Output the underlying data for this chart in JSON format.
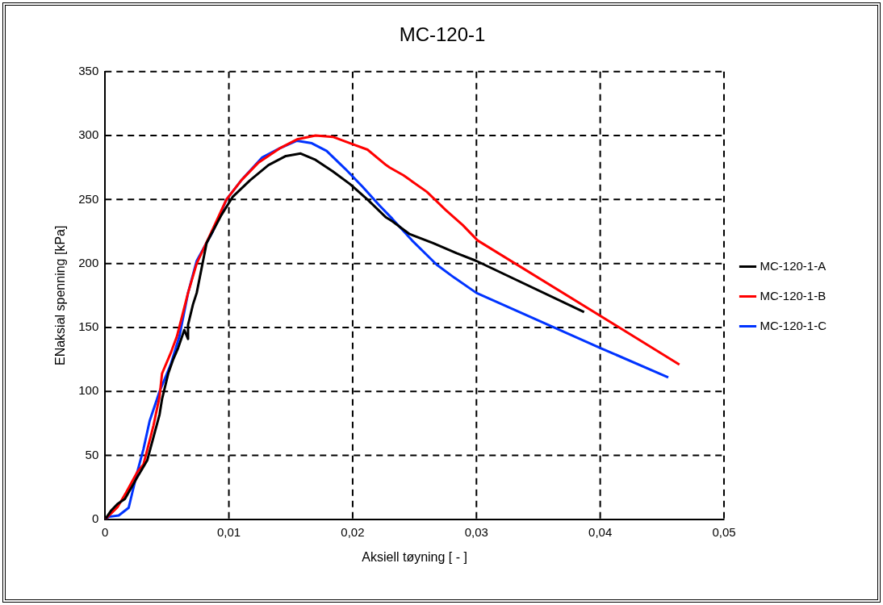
{
  "chart_data": {
    "type": "line",
    "title": "MC-120-1",
    "xlabel": "Aksiell tøyning [ - ]",
    "ylabel": "ENaksial spenning [kPa]",
    "xlim": [
      0,
      0.05
    ],
    "xticks": [
      0,
      {
        "value": 0.01,
        "label": "0,01"
      },
      {
        "value": 0.02,
        "label": "0,02"
      },
      {
        "value": 0.03,
        "label": "0,03"
      },
      {
        "value": 0.04,
        "label": "0,04"
      },
      {
        "value": 0.05,
        "label": "0,05"
      }
    ],
    "ylim": [
      0,
      350
    ],
    "yticks": [
      0,
      50,
      100,
      150,
      200,
      250,
      300,
      350
    ],
    "grid": true,
    "legend": "right",
    "marker": "none",
    "line_style": "solid",
    "series": [
      {
        "name": "MC-120-1-A",
        "color": "#000000",
        "x": [
          0,
          0.0005,
          0.001,
          0.0016,
          0.0026,
          0.0034,
          0.0039,
          0.0044,
          0.0046,
          0.0051,
          0.0055,
          0.0059,
          0.0064,
          0.0067,
          0.0067,
          0.0071,
          0.0074,
          0.0082,
          0.0094,
          0.0103,
          0.0117,
          0.0132,
          0.0146,
          0.0158,
          0.017,
          0.0184,
          0.0198,
          0.0212,
          0.0227,
          0.0232,
          0.0246,
          0.0265,
          0.0284,
          0.03,
          0.0387
        ],
        "values": [
          0,
          7,
          12,
          16,
          33,
          46,
          64,
          82,
          94,
          114,
          125,
          134,
          148,
          141,
          152,
          168,
          177,
          216,
          238,
          252,
          265,
          277,
          284,
          286,
          281,
          272,
          262,
          250,
          236,
          233,
          223,
          216,
          208,
          202,
          162
        ]
      },
      {
        "name": "MC-120-1-B",
        "color": "#ff0000",
        "x": [
          0,
          0.001,
          0.0017,
          0.0026,
          0.0031,
          0.0039,
          0.0044,
          0.0046,
          0.0053,
          0.0058,
          0.0067,
          0.0074,
          0.0087,
          0.0098,
          0.011,
          0.0124,
          0.0141,
          0.0155,
          0.017,
          0.0184,
          0.0198,
          0.0212,
          0.0227,
          0.023,
          0.0241,
          0.026,
          0.0275,
          0.0289,
          0.0301,
          0.0464
        ],
        "values": [
          0,
          9.5,
          21,
          37,
          43,
          73,
          96,
          114,
          130,
          143,
          177,
          200,
          227,
          250,
          265,
          279,
          290,
          297,
          300,
          299,
          294,
          289,
          277,
          275,
          269,
          256,
          242,
          230,
          218,
          121
        ]
      },
      {
        "name": "MC-120-1-C",
        "color": "#0033ff",
        "x": [
          0,
          0.0003,
          0.0011,
          0.0019,
          0.0022,
          0.0026,
          0.0031,
          0.0036,
          0.0044,
          0.0053,
          0.006,
          0.0067,
          0.0074,
          0.0087,
          0.0098,
          0.011,
          0.0127,
          0.0141,
          0.0155,
          0.0167,
          0.0179,
          0.0194,
          0.0208,
          0.0222,
          0.0232,
          0.0248,
          0.0268,
          0.0282,
          0.03,
          0.04,
          0.0455
        ],
        "values": [
          0,
          2,
          3,
          9,
          21,
          37,
          55,
          77,
          100,
          121,
          143,
          177,
          202,
          225,
          250,
          265,
          283,
          290,
          296,
          294,
          288,
          274,
          260,
          245,
          235,
          218,
          199,
          189,
          177,
          134,
          111
        ]
      }
    ]
  }
}
